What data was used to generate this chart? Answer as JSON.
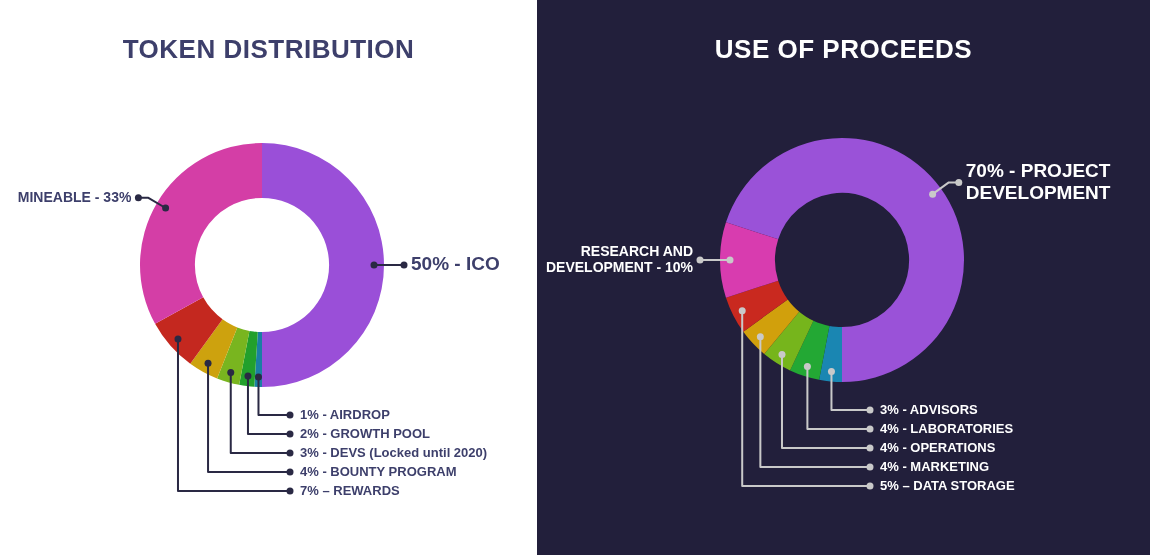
{
  "chart_data": [
    {
      "type": "donut",
      "title": "TOKEN DISTRIBUTION",
      "categories": [
        "50% - ICO",
        "1% - AIRDROP",
        "2% - GROWTH POOL",
        "3% - DEVS (Locked until 2020)",
        "4% - BOUNTY PROGRAM",
        "7% – REWARDS",
        "MINEABLE - 33%"
      ],
      "values": [
        50,
        1,
        2,
        3,
        4,
        7,
        33
      ],
      "colors": [
        "#9a4fd8",
        "#1a7fa3",
        "#22a02c",
        "#79b51f",
        "#cda20e",
        "#c4281f",
        "#d43ea6"
      ]
    },
    {
      "type": "donut",
      "title": "USE OF PROCEEDS",
      "categories": [
        "70% - PROJECT DEVELOPMENT",
        "3% - ADVISORS",
        "4% - LABORATORIES",
        "4% - OPERATIONS",
        "4% - MARKETING",
        "5% – DATA STORAGE",
        "RESEARCH AND DEVELOPMENT - 10%"
      ],
      "values": [
        70,
        3,
        4,
        4,
        4,
        5,
        10
      ],
      "colors": [
        "#9a52d8",
        "#1a86b2",
        "#23a834",
        "#76b51c",
        "#d1a00c",
        "#c9291f",
        "#d83caf"
      ]
    }
  ]
}
